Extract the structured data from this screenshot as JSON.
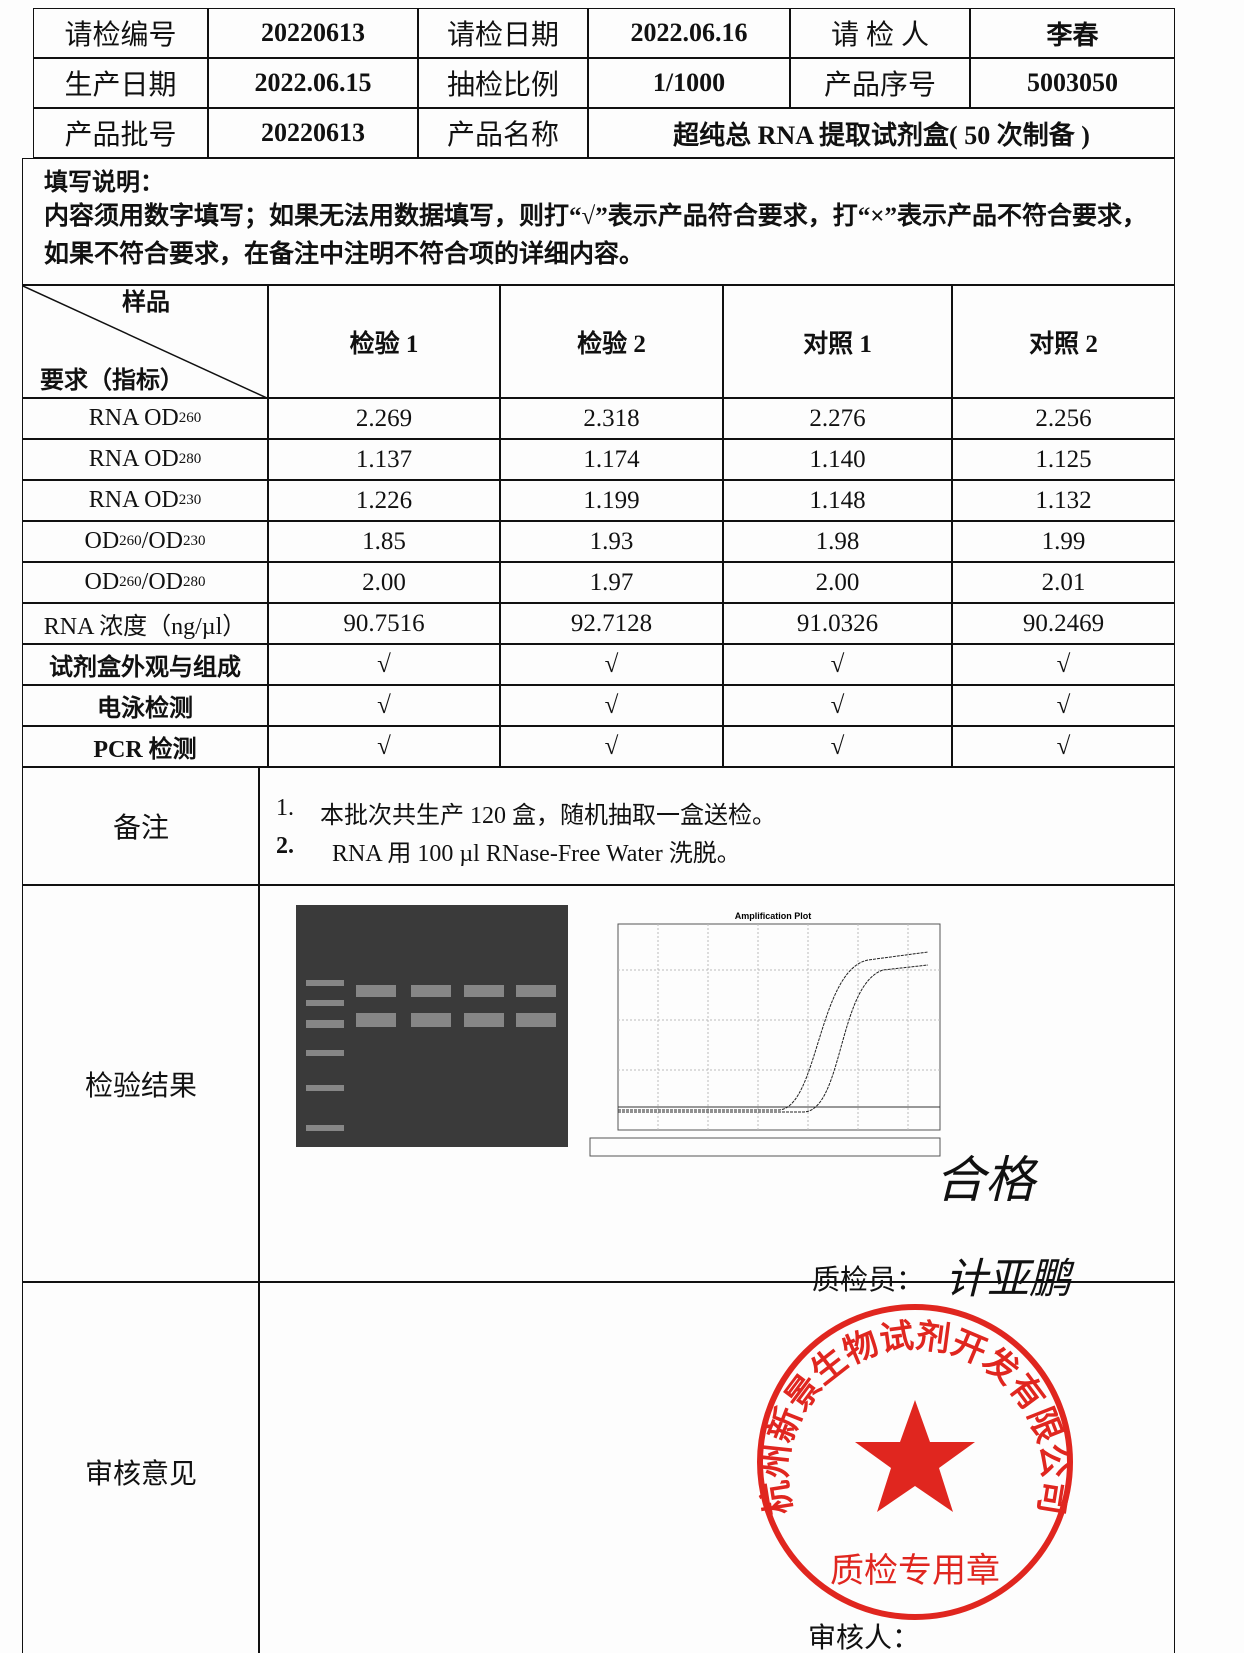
{
  "header": {
    "rows": [
      [
        {
          "label": "请检编号",
          "value": "20220613"
        },
        {
          "label": "请检日期",
          "value": "2022.06.16"
        },
        {
          "label": "请 检 人",
          "value": "李春"
        }
      ],
      [
        {
          "label": "生产日期",
          "value": "2022.06.15"
        },
        {
          "label": "抽检比例",
          "value": "1/1000"
        },
        {
          "label": "产品序号",
          "value": "5003050"
        }
      ],
      [
        {
          "label": "产品批号",
          "value": "20220613"
        },
        {
          "label": "产品名称",
          "value": "超纯总 RNA 提取试剂盒( 50 次制备 )"
        }
      ]
    ]
  },
  "instructions": {
    "title": "填写说明：",
    "text": "内容须用数字填写；如果无法用数据填写，则打“√”表示产品符合要求，打“×”表示产品不符合要求，如果不符合要求，在备注中注明不符合项的详细内容。"
  },
  "table": {
    "corner_top": "样品",
    "corner_bottom": "要求（指标）",
    "columns": [
      "检验 1",
      "检验 2",
      "对照 1",
      "对照 2"
    ],
    "rows": [
      {
        "label": [
          "RNA OD",
          "260"
        ],
        "values": [
          "2.269",
          "2.318",
          "2.276",
          "2.256"
        ]
      },
      {
        "label": [
          "RNA OD",
          "280"
        ],
        "values": [
          "1.137",
          "1.174",
          "1.140",
          "1.125"
        ]
      },
      {
        "label": [
          "RNA OD",
          "230"
        ],
        "values": [
          "1.226",
          "1.199",
          "1.148",
          "1.132"
        ]
      },
      {
        "label": [
          "OD",
          "260",
          "/OD",
          "230"
        ],
        "values": [
          "1.85",
          "1.93",
          "1.98",
          "1.99"
        ]
      },
      {
        "label": [
          "OD",
          "260",
          "/OD",
          "280"
        ],
        "values": [
          "2.00",
          "1.97",
          "2.00",
          "2.01"
        ]
      },
      {
        "label": [
          "RNA 浓度（ng/µl）"
        ],
        "values": [
          "90.7516",
          "92.7128",
          "91.0326",
          "90.2469"
        ]
      },
      {
        "label": [
          "试剂盒外观与组成"
        ],
        "values": [
          "√",
          "√",
          "√",
          "√"
        ]
      },
      {
        "label": [
          "电泳检测"
        ],
        "values": [
          "√",
          "√",
          "√",
          "√"
        ]
      },
      {
        "label": [
          "PCR 检测"
        ],
        "values": [
          "√",
          "√",
          "√",
          "√"
        ]
      }
    ]
  },
  "remarks": {
    "label": "备注",
    "items": [
      {
        "num": "1.",
        "text": "本批次共生产 120 盒，随机抽取一盒送检。"
      },
      {
        "num": "2.",
        "text": "RNA 用 100 µl RNase-Free Water 洗脱。"
      }
    ]
  },
  "results": {
    "label": "检验结果",
    "plot_title": "Amplification Plot",
    "conclusion": "合格",
    "inspector_label": "质检员：",
    "inspector_signature": "计亚鹏"
  },
  "review": {
    "label": "审核意见",
    "stamp_company": "杭州新景生物试剂开发有限公司",
    "stamp_purpose": "质检专用章",
    "reviewer_label": "审核人："
  }
}
